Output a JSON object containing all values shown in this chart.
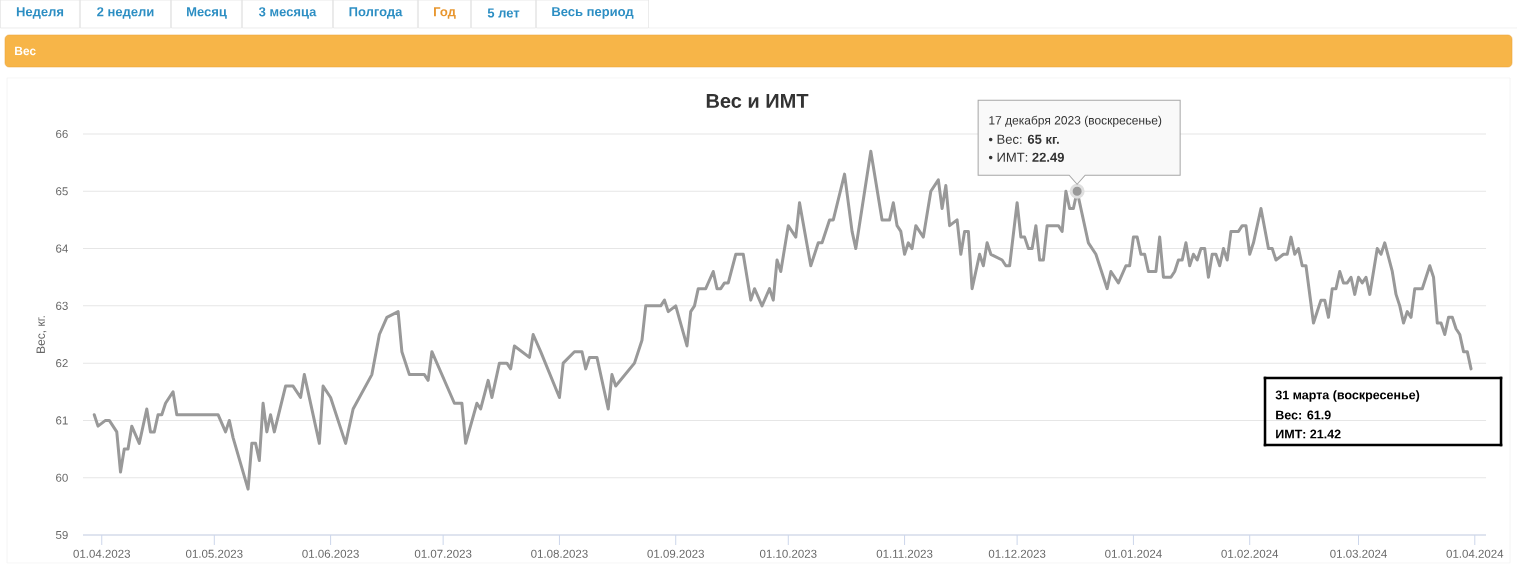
{
  "chart_data": {
    "type": "line",
    "title": "Вес и ИМТ",
    "ylabel": "Вес, кг.",
    "grid": "y",
    "line_style": "solid",
    "series": [
      {
        "type": "scatter",
        "color": "#999999",
        "marker": "circle",
        "x": [
          "2023-12-17"
        ],
        "values": [
          65
        ]
      },
      {
        "color": "#999999",
        "x": [
          "2023-03-30",
          "2023-03-31",
          "2023-04-02",
          "2023-04-03",
          "2023-04-04",
          "2023-04-05",
          "2023-04-06",
          "2023-04-07",
          "2023-04-08",
          "2023-04-09",
          "2023-04-11",
          "2023-04-13",
          "2023-04-14",
          "2023-04-15",
          "2023-04-16",
          "2023-04-17",
          "2023-04-18",
          "2023-04-20",
          "2023-04-21",
          "2023-05-02",
          "2023-05-04",
          "2023-05-05",
          "2023-05-06",
          "2023-05-10",
          "2023-05-11",
          "2023-05-12",
          "2023-05-13",
          "2023-05-14",
          "2023-05-15",
          "2023-05-16",
          "2023-05-17",
          "2023-05-20",
          "2023-05-22",
          "2023-05-24",
          "2023-05-25",
          "2023-05-29",
          "2023-05-30",
          "2023-06-01",
          "2023-06-05",
          "2023-06-07",
          "2023-06-12",
          "2023-06-14",
          "2023-06-16",
          "2023-06-19",
          "2023-06-20",
          "2023-06-22",
          "2023-06-26",
          "2023-06-27",
          "2023-06-28",
          "2023-07-04",
          "2023-07-06",
          "2023-07-07",
          "2023-07-10",
          "2023-07-11",
          "2023-07-13",
          "2023-07-14",
          "2023-07-16",
          "2023-07-18",
          "2023-07-19",
          "2023-07-20",
          "2023-07-24",
          "2023-07-25",
          "2023-07-27",
          "2023-08-01",
          "2023-08-02",
          "2023-08-05",
          "2023-08-07",
          "2023-08-08",
          "2023-08-09",
          "2023-08-11",
          "2023-08-14",
          "2023-08-15",
          "2023-08-16",
          "2023-08-21",
          "2023-08-23",
          "2023-08-24",
          "2023-08-28",
          "2023-08-29",
          "2023-08-30",
          "2023-09-01",
          "2023-09-04",
          "2023-09-05",
          "2023-09-06",
          "2023-09-07",
          "2023-09-09",
          "2023-09-11",
          "2023-09-12",
          "2023-09-13",
          "2023-09-14",
          "2023-09-15",
          "2023-09-17",
          "2023-09-19",
          "2023-09-21",
          "2023-09-22",
          "2023-09-24",
          "2023-09-26",
          "2023-09-27",
          "2023-09-28",
          "2023-09-29",
          "2023-10-01",
          "2023-10-03",
          "2023-10-04",
          "2023-10-07",
          "2023-10-09",
          "2023-10-10",
          "2023-10-12",
          "2023-10-13",
          "2023-10-16",
          "2023-10-18",
          "2023-10-19",
          "2023-10-23",
          "2023-10-26",
          "2023-10-28",
          "2023-10-29",
          "2023-10-30",
          "2023-10-31",
          "2023-11-01",
          "2023-11-02",
          "2023-11-03",
          "2023-11-04",
          "2023-11-06",
          "2023-11-08",
          "2023-11-10",
          "2023-11-11",
          "2023-11-12",
          "2023-11-13",
          "2023-11-15",
          "2023-11-16",
          "2023-11-17",
          "2023-11-18",
          "2023-11-19",
          "2023-11-21",
          "2023-11-22",
          "2023-11-23",
          "2023-11-24",
          "2023-11-27",
          "2023-11-28",
          "2023-11-29",
          "2023-12-01",
          "2023-12-02",
          "2023-12-03",
          "2023-12-04",
          "2023-12-05",
          "2023-12-06",
          "2023-12-07",
          "2023-12-08",
          "2023-12-09",
          "2023-12-12",
          "2023-12-13",
          "2023-12-14",
          "2023-12-15",
          "2023-12-16",
          "2023-12-17",
          "2023-12-20",
          "2023-12-22",
          "2023-12-25",
          "2023-12-26",
          "2023-12-28",
          "2023-12-30",
          "2023-12-31",
          "2024-01-01",
          "2024-01-02",
          "2024-01-03",
          "2024-01-04",
          "2024-01-05",
          "2024-01-07",
          "2024-01-08",
          "2024-01-09",
          "2024-01-11",
          "2024-01-12",
          "2024-01-13",
          "2024-01-14",
          "2024-01-15",
          "2024-01-16",
          "2024-01-17",
          "2024-01-18",
          "2024-01-19",
          "2024-01-20",
          "2024-01-21",
          "2024-01-22",
          "2024-01-23",
          "2024-01-24",
          "2024-01-25",
          "2024-01-26",
          "2024-01-27",
          "2024-01-29",
          "2024-01-30",
          "2024-01-31",
          "2024-02-01",
          "2024-02-02",
          "2024-02-04",
          "2024-02-06",
          "2024-02-07",
          "2024-02-08",
          "2024-02-10",
          "2024-02-11",
          "2024-02-12",
          "2024-02-13",
          "2024-02-14",
          "2024-02-15",
          "2024-02-16",
          "2024-02-18",
          "2024-02-19",
          "2024-02-20",
          "2024-02-21",
          "2024-02-22",
          "2024-02-23",
          "2024-02-24",
          "2024-02-25",
          "2024-02-26",
          "2024-02-27",
          "2024-02-28",
          "2024-02-29",
          "2024-03-01",
          "2024-03-02",
          "2024-03-03",
          "2024-03-04",
          "2024-03-06",
          "2024-03-07",
          "2024-03-08",
          "2024-03-10",
          "2024-03-11",
          "2024-03-12",
          "2024-03-13",
          "2024-03-14",
          "2024-03-15",
          "2024-03-16",
          "2024-03-18",
          "2024-03-20",
          "2024-03-21",
          "2024-03-22",
          "2024-03-23",
          "2024-03-24",
          "2024-03-25",
          "2024-03-26",
          "2024-03-27",
          "2024-03-28",
          "2024-03-29",
          "2024-03-30",
          "2024-03-31"
        ],
        "values": [
          61.1,
          60.9,
          61.0,
          61.0,
          60.9,
          60.8,
          60.1,
          60.5,
          60.5,
          60.9,
          60.6,
          61.2,
          60.8,
          60.8,
          61.1,
          61.1,
          61.3,
          61.5,
          61.1,
          61.1,
          60.8,
          61.0,
          60.7,
          59.8,
          60.6,
          60.6,
          60.3,
          61.3,
          60.8,
          61.1,
          60.8,
          61.6,
          61.6,
          61.4,
          61.8,
          60.6,
          61.6,
          61.4,
          60.6,
          61.2,
          61.8,
          62.5,
          62.8,
          62.9,
          62.2,
          61.8,
          61.8,
          61.7,
          62.2,
          61.3,
          61.3,
          60.6,
          61.3,
          61.2,
          61.7,
          61.4,
          62.0,
          62.0,
          61.9,
          62.3,
          62.1,
          62.5,
          62.2,
          61.4,
          62.0,
          62.2,
          62.2,
          61.9,
          62.1,
          62.1,
          61.2,
          61.8,
          61.6,
          62.0,
          62.4,
          63.0,
          63.0,
          63.1,
          62.9,
          63.0,
          62.3,
          62.9,
          63.0,
          63.3,
          63.3,
          63.6,
          63.3,
          63.3,
          63.4,
          63.4,
          63.9,
          63.9,
          63.1,
          63.3,
          63.0,
          63.3,
          63.1,
          63.8,
          63.6,
          64.4,
          64.2,
          64.8,
          63.7,
          64.1,
          64.1,
          64.5,
          64.5,
          65.3,
          64.3,
          64.0,
          65.7,
          64.5,
          64.5,
          64.8,
          64.4,
          64.3,
          63.9,
          64.1,
          64.0,
          64.4,
          64.2,
          65.0,
          65.2,
          64.7,
          65.1,
          64.4,
          64.5,
          63.9,
          64.3,
          64.3,
          63.3,
          63.9,
          63.7,
          64.1,
          63.9,
          63.8,
          63.7,
          63.7,
          64.8,
          64.2,
          64.2,
          64.0,
          64.0,
          64.4,
          63.8,
          63.8,
          64.4,
          64.4,
          64.3,
          65.0,
          64.7,
          64.7,
          65.0,
          64.1,
          63.9,
          63.3,
          63.6,
          63.4,
          63.7,
          63.7,
          64.2,
          64.2,
          63.9,
          63.9,
          63.6,
          63.6,
          64.2,
          63.5,
          63.5,
          63.6,
          63.8,
          63.8,
          64.1,
          63.7,
          63.9,
          63.8,
          64.0,
          64.0,
          63.5,
          63.9,
          63.9,
          63.7,
          64.0,
          63.8,
          64.3,
          64.3,
          64.4,
          64.4,
          63.9,
          64.1,
          64.7,
          64.0,
          64.0,
          63.8,
          63.9,
          63.9,
          64.2,
          63.9,
          64.0,
          63.7,
          63.7,
          62.7,
          62.9,
          63.1,
          63.1,
          62.8,
          63.3,
          63.3,
          63.6,
          63.4,
          63.4,
          63.5,
          63.2,
          63.5,
          63.4,
          63.5,
          63.2,
          64.0,
          63.9,
          64.1,
          63.6,
          63.2,
          63.0,
          62.7,
          62.9,
          62.8,
          63.3,
          63.3,
          63.7,
          63.5,
          62.7,
          62.7,
          62.5,
          62.8,
          62.8,
          62.6,
          62.5,
          62.2,
          62.2,
          61.9
        ]
      }
    ],
    "xlim": [
      "2023-03-27",
      "2024-04-04"
    ],
    "ylim": [
      59,
      66
    ],
    "xticks": [
      {
        "value": "2023-04-01",
        "label": "01.04.2023"
      },
      {
        "value": "2023-05-01",
        "label": "01.05.2023"
      },
      {
        "value": "2023-06-01",
        "label": "01.06.2023"
      },
      {
        "value": "2023-07-01",
        "label": "01.07.2023"
      },
      {
        "value": "2023-08-01",
        "label": "01.08.2023"
      },
      {
        "value": "2023-09-01",
        "label": "01.09.2023"
      },
      {
        "value": "2023-10-01",
        "label": "01.10.2023"
      },
      {
        "value": "2023-11-01",
        "label": "01.11.2023"
      },
      {
        "value": "2023-12-01",
        "label": "01.12.2023"
      },
      {
        "value": "2024-01-01",
        "label": "01.01.2024"
      },
      {
        "value": "2024-02-01",
        "label": "01.02.2024"
      },
      {
        "value": "2024-03-01",
        "label": "01.03.2024"
      },
      {
        "value": "2024-04-01",
        "label": "01.04.2024"
      }
    ],
    "yticks": [
      59,
      60,
      61,
      62,
      63,
      64,
      65,
      66
    ],
    "annotations": [
      "Неделя",
      "2 недели",
      "Месяц",
      "3 месяца",
      "Полгода",
      "Год",
      "5 лет",
      "Весь период",
      "Вес",
      "17 декабря 2023 (воскресенье)",
      "• Вес: **65 кг.**",
      "• ИМТ: **22.49**",
      "31 марта (воскресенье)",
      "Вес: 61.9",
      "ИМТ: 21.42"
    ]
  }
}
